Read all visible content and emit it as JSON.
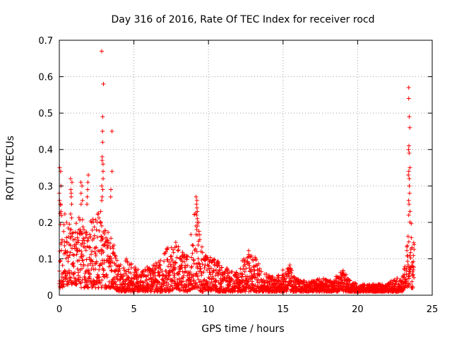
{
  "chart_data": {
    "type": "scatter",
    "title": "Day 316 of 2016, Rate Of TEC Index for receiver rocd",
    "xlabel": "GPS time / hours",
    "ylabel": "ROTI / TECUs",
    "xlim": [
      0,
      25
    ],
    "ylim": [
      0,
      0.7
    ],
    "x_ticks": [
      0,
      5,
      10,
      15,
      20,
      25
    ],
    "x_tick_labels": [
      "0",
      "5",
      "10",
      "15",
      "20",
      "25"
    ],
    "y_ticks": [
      0,
      0.1,
      0.2,
      0.3,
      0.4,
      0.5,
      0.6,
      0.7
    ],
    "y_tick_labels": [
      "0",
      "0.1",
      "0.2",
      "0.3",
      "0.4",
      "0.5",
      "0.6",
      "0.7"
    ],
    "grid": true,
    "marker": "+",
    "marker_color": "#ff0000",
    "envelope": {
      "x": [
        0.0,
        0.3,
        0.7,
        1.0,
        1.5,
        2.0,
        2.5,
        2.8,
        3.0,
        3.3,
        3.6,
        4.0,
        4.5,
        5.0,
        5.5,
        6.0,
        6.5,
        7.0,
        7.5,
        7.8,
        8.2,
        8.6,
        9.0,
        9.2,
        9.5,
        10.0,
        10.5,
        11.0,
        11.5,
        12.0,
        12.5,
        12.8,
        13.2,
        13.6,
        14.0,
        14.5,
        15.0,
        15.4,
        15.8,
        16.2,
        17.0,
        17.5,
        18.0,
        18.5,
        19.0,
        19.5,
        20.0,
        21.0,
        22.0,
        22.5,
        23.0,
        23.2,
        23.4,
        23.6,
        23.8
      ],
      "upper": [
        0.28,
        0.22,
        0.24,
        0.22,
        0.21,
        0.2,
        0.22,
        0.25,
        0.2,
        0.17,
        0.15,
        0.08,
        0.1,
        0.08,
        0.07,
        0.08,
        0.09,
        0.12,
        0.14,
        0.15,
        0.12,
        0.11,
        0.22,
        0.25,
        0.15,
        0.11,
        0.1,
        0.08,
        0.07,
        0.07,
        0.12,
        0.13,
        0.1,
        0.07,
        0.06,
        0.05,
        0.07,
        0.09,
        0.05,
        0.04,
        0.04,
        0.05,
        0.04,
        0.05,
        0.07,
        0.04,
        0.03,
        0.03,
        0.03,
        0.05,
        0.04,
        0.1,
        0.2,
        0.22,
        0.14
      ],
      "lower": [
        0.02,
        0.02,
        0.03,
        0.03,
        0.02,
        0.02,
        0.02,
        0.02,
        0.02,
        0.02,
        0.02,
        0.01,
        0.01,
        0.01,
        0.01,
        0.01,
        0.01,
        0.01,
        0.01,
        0.02,
        0.01,
        0.01,
        0.02,
        0.02,
        0.01,
        0.01,
        0.01,
        0.01,
        0.01,
        0.01,
        0.01,
        0.01,
        0.01,
        0.01,
        0.01,
        0.01,
        0.01,
        0.01,
        0.01,
        0.01,
        0.01,
        0.01,
        0.01,
        0.01,
        0.01,
        0.01,
        0.01,
        0.01,
        0.01,
        0.01,
        0.01,
        0.02,
        0.02,
        0.02,
        0.02
      ]
    },
    "spikes": [
      {
        "x": 0.05,
        "values": [
          0.35,
          0.34,
          0.3,
          0.28,
          0.26,
          0.25,
          0.23
        ]
      },
      {
        "x": 0.8,
        "values": [
          0.32,
          0.31,
          0.29,
          0.28,
          0.27,
          0.25
        ]
      },
      {
        "x": 1.5,
        "values": [
          0.31,
          0.3,
          0.28,
          0.26,
          0.25
        ]
      },
      {
        "x": 1.9,
        "values": [
          0.33,
          0.31,
          0.29,
          0.27,
          0.25
        ]
      },
      {
        "x": 2.9,
        "values": [
          0.67,
          0.58,
          0.49,
          0.45,
          0.42,
          0.38,
          0.37,
          0.36,
          0.34,
          0.32,
          0.3,
          0.29,
          0.27,
          0.26
        ]
      },
      {
        "x": 3.5,
        "values": [
          0.45,
          0.34,
          0.29,
          0.27
        ]
      },
      {
        "x": 9.2,
        "values": [
          0.27,
          0.26,
          0.25,
          0.24,
          0.23,
          0.22,
          0.21,
          0.2,
          0.19,
          0.18
        ]
      },
      {
        "x": 23.45,
        "values": [
          0.57,
          0.54,
          0.49,
          0.46,
          0.41,
          0.4,
          0.39,
          0.35,
          0.34,
          0.33,
          0.32,
          0.3,
          0.28,
          0.26,
          0.25,
          0.23,
          0.22
        ]
      }
    ]
  }
}
